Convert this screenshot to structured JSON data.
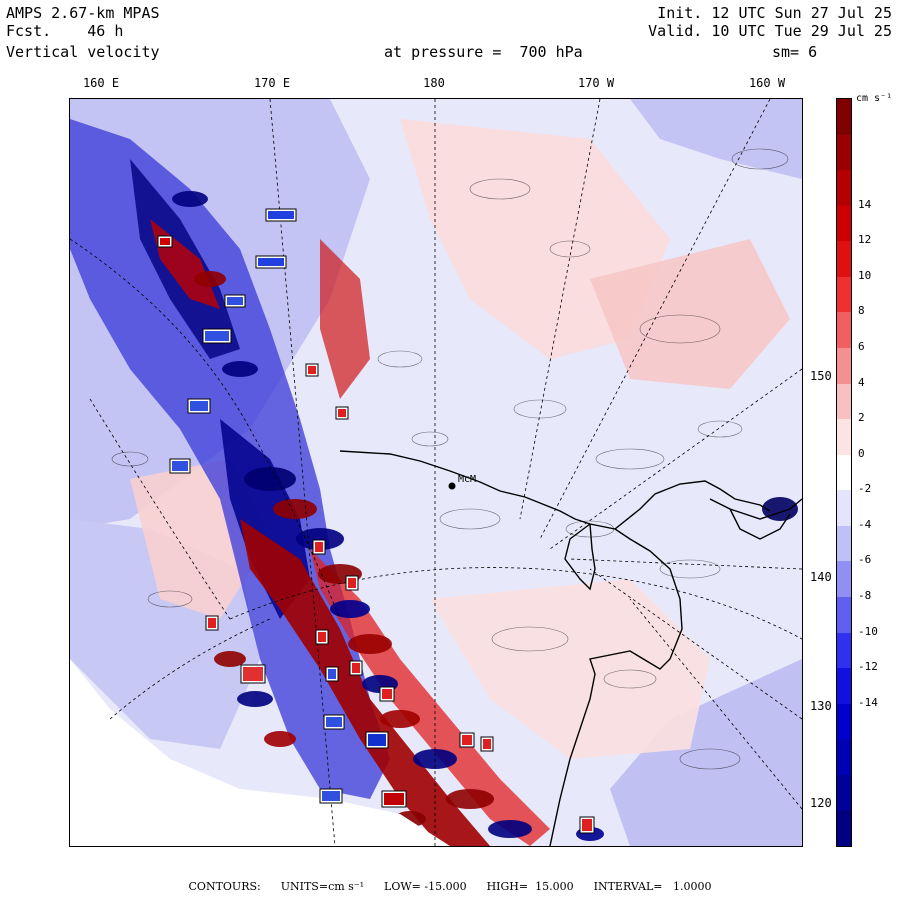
{
  "header": {
    "model": "AMPS 2.67-km MPAS",
    "fcst_label": "Fcst.",
    "fcst_value": "46 h",
    "field": "Vertical velocity",
    "level": "at pressure =  700 hPa",
    "init": "Init. 12 UTC Sun 27 Jul 25",
    "valid": "Valid. 10 UTC Tue 29 Jul 25",
    "smooth": "sm= 6"
  },
  "lon_labels": [
    "160 E",
    "170 E",
    "180",
    "170 W",
    "160 W"
  ],
  "lat_labels": [
    "150 W",
    "140 W",
    "130 W",
    "120 W"
  ],
  "station_label": "McM",
  "colorbar": {
    "unit": "cm s⁻¹",
    "ticks": [
      "14",
      "12",
      "10",
      "8",
      "6",
      "4",
      "2",
      "0",
      "-2",
      "-4",
      "-6",
      "-8",
      "-10",
      "-12",
      "-14"
    ],
    "colors": [
      "#800000",
      "#9a0000",
      "#b40000",
      "#cc0000",
      "#e01010",
      "#f03030",
      "#f06060",
      "#f49090",
      "#f8c0c0",
      "#fce4e4",
      "#ffffff",
      "#e4e4fc",
      "#c0c0f8",
      "#9090f4",
      "#6060f0",
      "#3030f0",
      "#1010e0",
      "#0000cc",
      "#0000b4",
      "#00009a",
      "#000080"
    ]
  },
  "footer": {
    "contours": "CONTOURS:",
    "units": "UNITS=cm s⁻¹",
    "low": "LOW= -15.000",
    "high": "HIGH=  15.000",
    "interval": "INTERVAL=   1.0000"
  }
}
